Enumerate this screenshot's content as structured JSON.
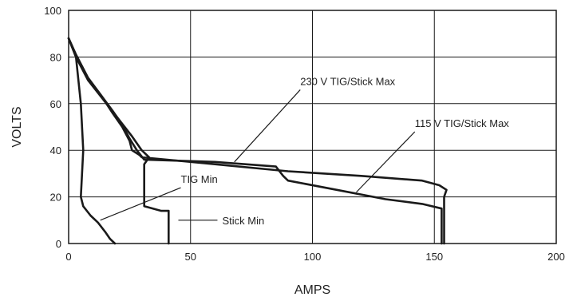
{
  "chart_data": {
    "type": "line",
    "title": "",
    "xlabel": "AMPS",
    "ylabel": "VOLTS",
    "xlim": [
      0,
      200
    ],
    "ylim": [
      0,
      100
    ],
    "xticks": [
      0,
      50,
      100,
      150,
      200
    ],
    "yticks": [
      0,
      20,
      40,
      60,
      80,
      100
    ],
    "grid": true,
    "series": [
      {
        "name": "230 V TIG/Stick Max",
        "points": [
          [
            0,
            88
          ],
          [
            3,
            81
          ],
          [
            8,
            71
          ],
          [
            13,
            64
          ],
          [
            18,
            56
          ],
          [
            22,
            50
          ],
          [
            25,
            44
          ],
          [
            26,
            40
          ],
          [
            29,
            38
          ],
          [
            30,
            37
          ],
          [
            60,
            34
          ],
          [
            90,
            31
          ],
          [
            120,
            29
          ],
          [
            145,
            27
          ],
          [
            152,
            25
          ],
          [
            155,
            23
          ],
          [
            154,
            20
          ],
          [
            154,
            10
          ],
          [
            154,
            0
          ]
        ]
      },
      {
        "name": "115 V TIG/Stick Max",
        "points": [
          [
            0,
            88
          ],
          [
            3,
            81
          ],
          [
            8,
            71
          ],
          [
            13,
            64
          ],
          [
            18,
            57
          ],
          [
            22,
            51
          ],
          [
            25,
            45
          ],
          [
            28,
            40
          ],
          [
            31,
            36
          ],
          [
            60,
            35
          ],
          [
            85,
            33
          ],
          [
            88,
            29
          ],
          [
            90,
            27
          ],
          [
            110,
            23
          ],
          [
            130,
            19
          ],
          [
            145,
            17
          ],
          [
            153,
            15
          ],
          [
            153,
            10
          ],
          [
            153,
            0
          ]
        ]
      },
      {
        "name": "TIG Min",
        "points": [
          [
            0,
            88
          ],
          [
            3,
            80
          ],
          [
            5,
            60
          ],
          [
            6,
            40
          ],
          [
            5,
            20
          ],
          [
            6,
            16
          ],
          [
            9,
            12
          ],
          [
            12,
            9
          ],
          [
            15,
            5
          ],
          [
            17,
            2
          ],
          [
            19,
            0
          ]
        ]
      },
      {
        "name": "Stick Min",
        "points": [
          [
            0,
            88
          ],
          [
            3,
            80
          ],
          [
            8,
            70
          ],
          [
            14,
            62
          ],
          [
            20,
            54
          ],
          [
            26,
            46
          ],
          [
            30,
            40
          ],
          [
            33,
            37
          ],
          [
            31,
            34
          ],
          [
            31,
            16
          ],
          [
            38,
            14
          ],
          [
            41,
            14
          ],
          [
            41,
            0
          ]
        ]
      }
    ],
    "annotations": [
      {
        "text": "230 V TIG/Stick Max",
        "anchor": [
          95,
          68
        ],
        "target": [
          68,
          35
        ]
      },
      {
        "text": "115 V TIG/Stick Max",
        "anchor": [
          142,
          50
        ],
        "target": [
          118,
          22
        ]
      },
      {
        "text": "TIG Min",
        "anchor": [
          46,
          26
        ],
        "target": [
          13,
          10
        ]
      },
      {
        "text": "Stick Min",
        "anchor": [
          63,
          10
        ],
        "target": [
          45,
          10
        ]
      }
    ]
  }
}
